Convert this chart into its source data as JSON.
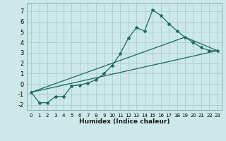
{
  "xlabel": "Humidex (Indice chaleur)",
  "bg_color": "#cce8e8",
  "grid_color": "#aacccc",
  "line_color": "#1a6b5a",
  "xlim": [
    -0.5,
    23.5
  ],
  "ylim": [
    -2.5,
    7.8
  ],
  "yticks": [
    -2,
    -1,
    0,
    1,
    2,
    3,
    4,
    5,
    6,
    7
  ],
  "xticks": [
    0,
    1,
    2,
    3,
    4,
    5,
    6,
    7,
    8,
    9,
    10,
    11,
    12,
    13,
    14,
    15,
    16,
    17,
    18,
    19,
    20,
    21,
    22,
    23
  ],
  "line1_x": [
    0,
    1,
    2,
    3,
    4,
    5,
    6,
    7,
    8,
    9,
    10,
    11,
    12,
    13,
    14,
    15,
    16,
    17,
    18,
    19,
    20,
    21,
    22,
    23
  ],
  "line1_y": [
    -0.8,
    -1.8,
    -1.8,
    -1.2,
    -1.2,
    -0.2,
    -0.1,
    0.1,
    0.4,
    1.0,
    1.8,
    2.9,
    4.4,
    5.4,
    5.1,
    7.1,
    6.6,
    5.8,
    5.1,
    4.5,
    4.0,
    3.5,
    3.2,
    3.2
  ],
  "line2_x": [
    0,
    23
  ],
  "line2_y": [
    -0.8,
    3.2
  ],
  "line3_x": [
    0,
    19,
    23
  ],
  "line3_y": [
    -0.8,
    4.5,
    3.2
  ]
}
